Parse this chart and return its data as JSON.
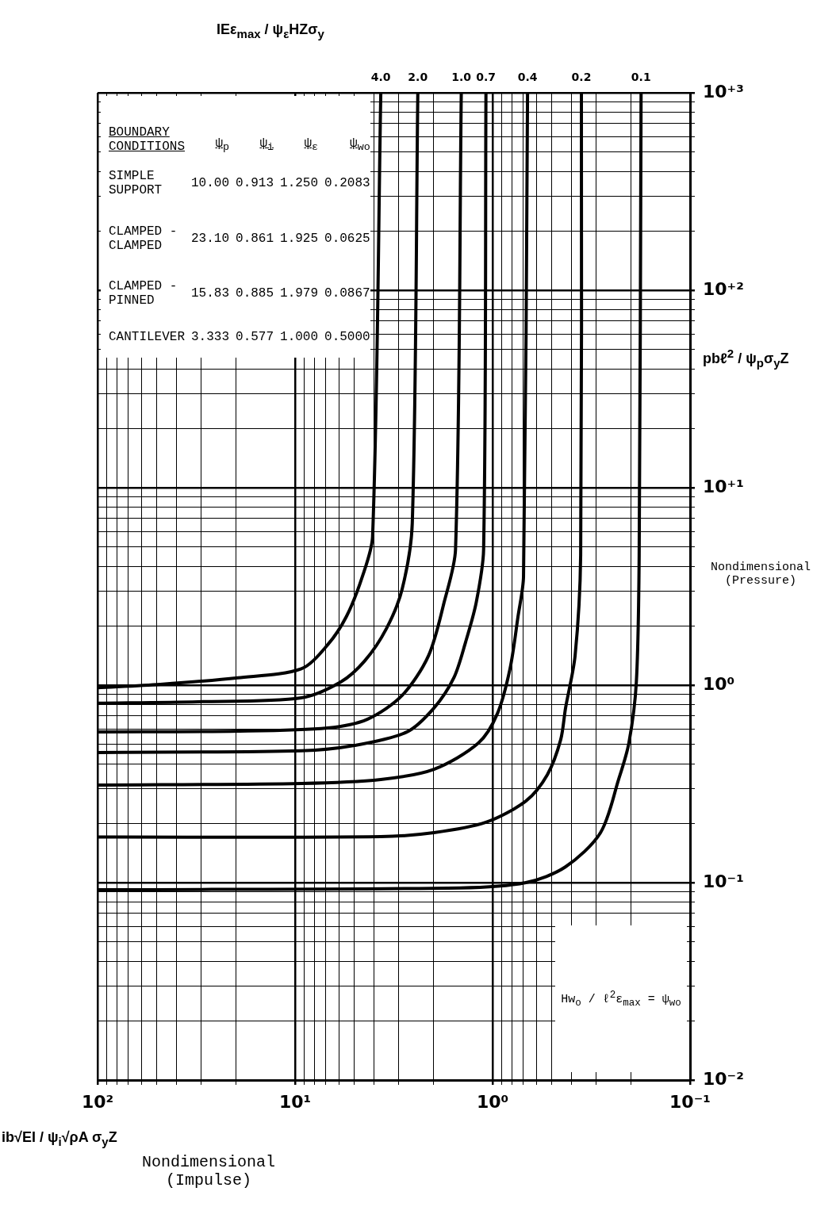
{
  "chart_data": {
    "type": "line",
    "log": "xy",
    "grid": true,
    "legend": false,
    "marker": "none",
    "line_style": "solid",
    "xlabel": "Nondimensional\n(Impulse)",
    "ylabel": "Nondimensional\n(Pressure)",
    "legend_title": "IEε$_{max}$ / ψ$_{ε}$HZσ$_{y}$",
    "xlim": [
      100,
      0.1
    ],
    "ylim": [
      0.01,
      1000
    ],
    "xticks": [
      {
        "value": 0.1,
        "label": "10⁻¹"
      },
      {
        "value": 0.2,
        "label": null
      },
      {
        "value": 0.3,
        "label": null
      },
      {
        "value": 0.4,
        "label": null
      },
      {
        "value": 0.5,
        "label": null
      },
      {
        "value": 0.6,
        "label": null
      },
      {
        "value": 0.7,
        "label": null
      },
      {
        "value": 0.8,
        "label": null
      },
      {
        "value": 0.9,
        "label": null
      },
      {
        "value": 1,
        "label": "10⁰"
      },
      {
        "value": 2,
        "label": null
      },
      {
        "value": 3,
        "label": null
      },
      {
        "value": 4,
        "label": null
      },
      {
        "value": 5,
        "label": null
      },
      {
        "value": 6,
        "label": null
      },
      {
        "value": 7,
        "label": null
      },
      {
        "value": 8,
        "label": null
      },
      {
        "value": 9,
        "label": null
      },
      {
        "value": 10,
        "label": "10¹"
      },
      {
        "value": 20,
        "label": null
      },
      {
        "value": 30,
        "label": null
      },
      {
        "value": 40,
        "label": null
      },
      {
        "value": 50,
        "label": null
      },
      {
        "value": 60,
        "label": null
      },
      {
        "value": 70,
        "label": null
      },
      {
        "value": 80,
        "label": null
      },
      {
        "value": 90,
        "label": null
      },
      {
        "value": 100,
        "label": "10²"
      }
    ],
    "yticks": [
      {
        "value": 0.01,
        "label": "10⁻²"
      },
      {
        "value": 0.02,
        "label": null
      },
      {
        "value": 0.03,
        "label": null
      },
      {
        "value": 0.04,
        "label": null
      },
      {
        "value": 0.05,
        "label": null
      },
      {
        "value": 0.06,
        "label": null
      },
      {
        "value": 0.07,
        "label": null
      },
      {
        "value": 0.08,
        "label": null
      },
      {
        "value": 0.09,
        "label": null
      },
      {
        "value": 0.1,
        "label": "10⁻¹"
      },
      {
        "value": 0.2,
        "label": null
      },
      {
        "value": 0.3,
        "label": null
      },
      {
        "value": 0.4,
        "label": null
      },
      {
        "value": 0.5,
        "label": null
      },
      {
        "value": 0.6,
        "label": null
      },
      {
        "value": 0.7,
        "label": null
      },
      {
        "value": 0.8,
        "label": null
      },
      {
        "value": 0.9,
        "label": null
      },
      {
        "value": 1,
        "label": "10⁰"
      },
      {
        "value": 2,
        "label": null
      },
      {
        "value": 3,
        "label": null
      },
      {
        "value": 4,
        "label": null
      },
      {
        "value": 5,
        "label": null
      },
      {
        "value": 6,
        "label": null
      },
      {
        "value": 7,
        "label": null
      },
      {
        "value": 8,
        "label": null
      },
      {
        "value": 9,
        "label": null
      },
      {
        "value": 10,
        "label": "10⁺¹"
      },
      {
        "value": 20,
        "label": null
      },
      {
        "value": 30,
        "label": null
      },
      {
        "value": 40,
        "label": null
      },
      {
        "value": 50,
        "label": null
      },
      {
        "value": 60,
        "label": null
      },
      {
        "value": 70,
        "label": null
      },
      {
        "value": 80,
        "label": null
      },
      {
        "value": 90,
        "label": null
      },
      {
        "value": 100,
        "label": "10⁺²"
      },
      {
        "value": 200,
        "label": null
      },
      {
        "value": 300,
        "label": null
      },
      {
        "value": 400,
        "label": null
      },
      {
        "value": 500,
        "label": null
      },
      {
        "value": 600,
        "label": null
      },
      {
        "value": 700,
        "label": null
      },
      {
        "value": 800,
        "label": null
      },
      {
        "value": 900,
        "label": null
      },
      {
        "value": 1000,
        "label": "10⁺³"
      }
    ],
    "series": [
      {
        "name": "4.0",
        "color": "#000000",
        "x": [
          100,
          48,
          19.5,
          9.3,
          6.84,
          5.49,
          4.56,
          4.05,
          3.68
        ],
        "values": [
          0.97,
          1.01,
          1.09,
          1.21,
          1.6,
          2.23,
          3.55,
          5.64,
          1000
        ]
      },
      {
        "name": "2.0",
        "color": "#000000",
        "x": [
          100,
          31,
          9.3,
          5.85,
          4.43,
          3.45,
          2.87,
          2.55,
          2.39
        ],
        "values": [
          0.81,
          0.824,
          0.863,
          1.04,
          1.33,
          1.93,
          3.06,
          6.6,
          1000
        ]
      },
      {
        "name": "1.0",
        "color": "#000000",
        "x": [
          100,
          19.5,
          6.84,
          4.31,
          2.87,
          2.11,
          1.76,
          1.54,
          1.44
        ],
        "values": [
          0.58,
          0.585,
          0.607,
          0.671,
          0.887,
          1.41,
          2.62,
          4.86,
          1000
        ]
      },
      {
        "name": "0.7",
        "color": "#000000",
        "x": [
          100,
          9.3,
          5.0,
          2.72,
          1.98,
          1.57,
          1.37,
          1.21,
          1.11,
          1.08
        ],
        "values": [
          0.456,
          0.465,
          0.495,
          0.579,
          0.766,
          1.09,
          1.65,
          2.62,
          4.86,
          1000
        ]
      },
      {
        "name": "0.4",
        "color": "#000000",
        "x": [
          100,
          9.3,
          3.68,
          1.98,
          1.18,
          0.946,
          0.816,
          0.743,
          0.697,
          0.665
        ],
        "values": [
          0.312,
          0.318,
          0.333,
          0.375,
          0.509,
          0.716,
          1.21,
          2.23,
          3.55,
          1000
        ]
      },
      {
        "name": "0.2",
        "color": "#000000",
        "x": [
          100,
          3.68,
          1.98,
          1.08,
          0.678,
          0.528,
          0.452,
          0.427,
          0.382,
          0.358,
          0.355
        ],
        "values": [
          0.17,
          0.171,
          0.179,
          0.202,
          0.259,
          0.352,
          0.529,
          0.766,
          1.41,
          4.56,
          1000
        ]
      },
      {
        "name": "0.1",
        "color": "#000000",
        "x": [
          100,
          1.46,
          0.678,
          0.428,
          0.284,
          0.23,
          0.204,
          0.187,
          0.181,
          0.177
        ],
        "values": [
          0.092,
          0.094,
          0.1,
          0.12,
          0.179,
          0.333,
          0.51,
          1.04,
          4.56,
          1000
        ]
      }
    ],
    "annotations": [
      "pbℓ$^{2}$ / ψ$_{p}$σ$_{y}$Z",
      "ib√EI / ψ$_{i}$√ρA σ$_{y}$Z",
      "Hw$_{o}$ / ℓ$^{2}$ε$_{max}$ = ψ$_{wo}$",
      "BOUNDARY CONDITIONS",
      "ψ$_{p}$",
      "ψ$_{i}$",
      "ψ$_{ε}$",
      "ψ$_{wo}$",
      "SIMPLE SUPPORT",
      "10.00",
      "0.913",
      "1.250",
      "0.2083",
      "CLAMPED - CLAMPED",
      "23.10",
      "0.861",
      "1.925",
      "0.0625",
      "CLAMPED - PINNED",
      "15.83",
      "0.885",
      "1.979",
      "0.0867",
      "CANTILEVER",
      "3.333",
      "0.577",
      "1.000",
      "0.5000"
    ]
  }
}
